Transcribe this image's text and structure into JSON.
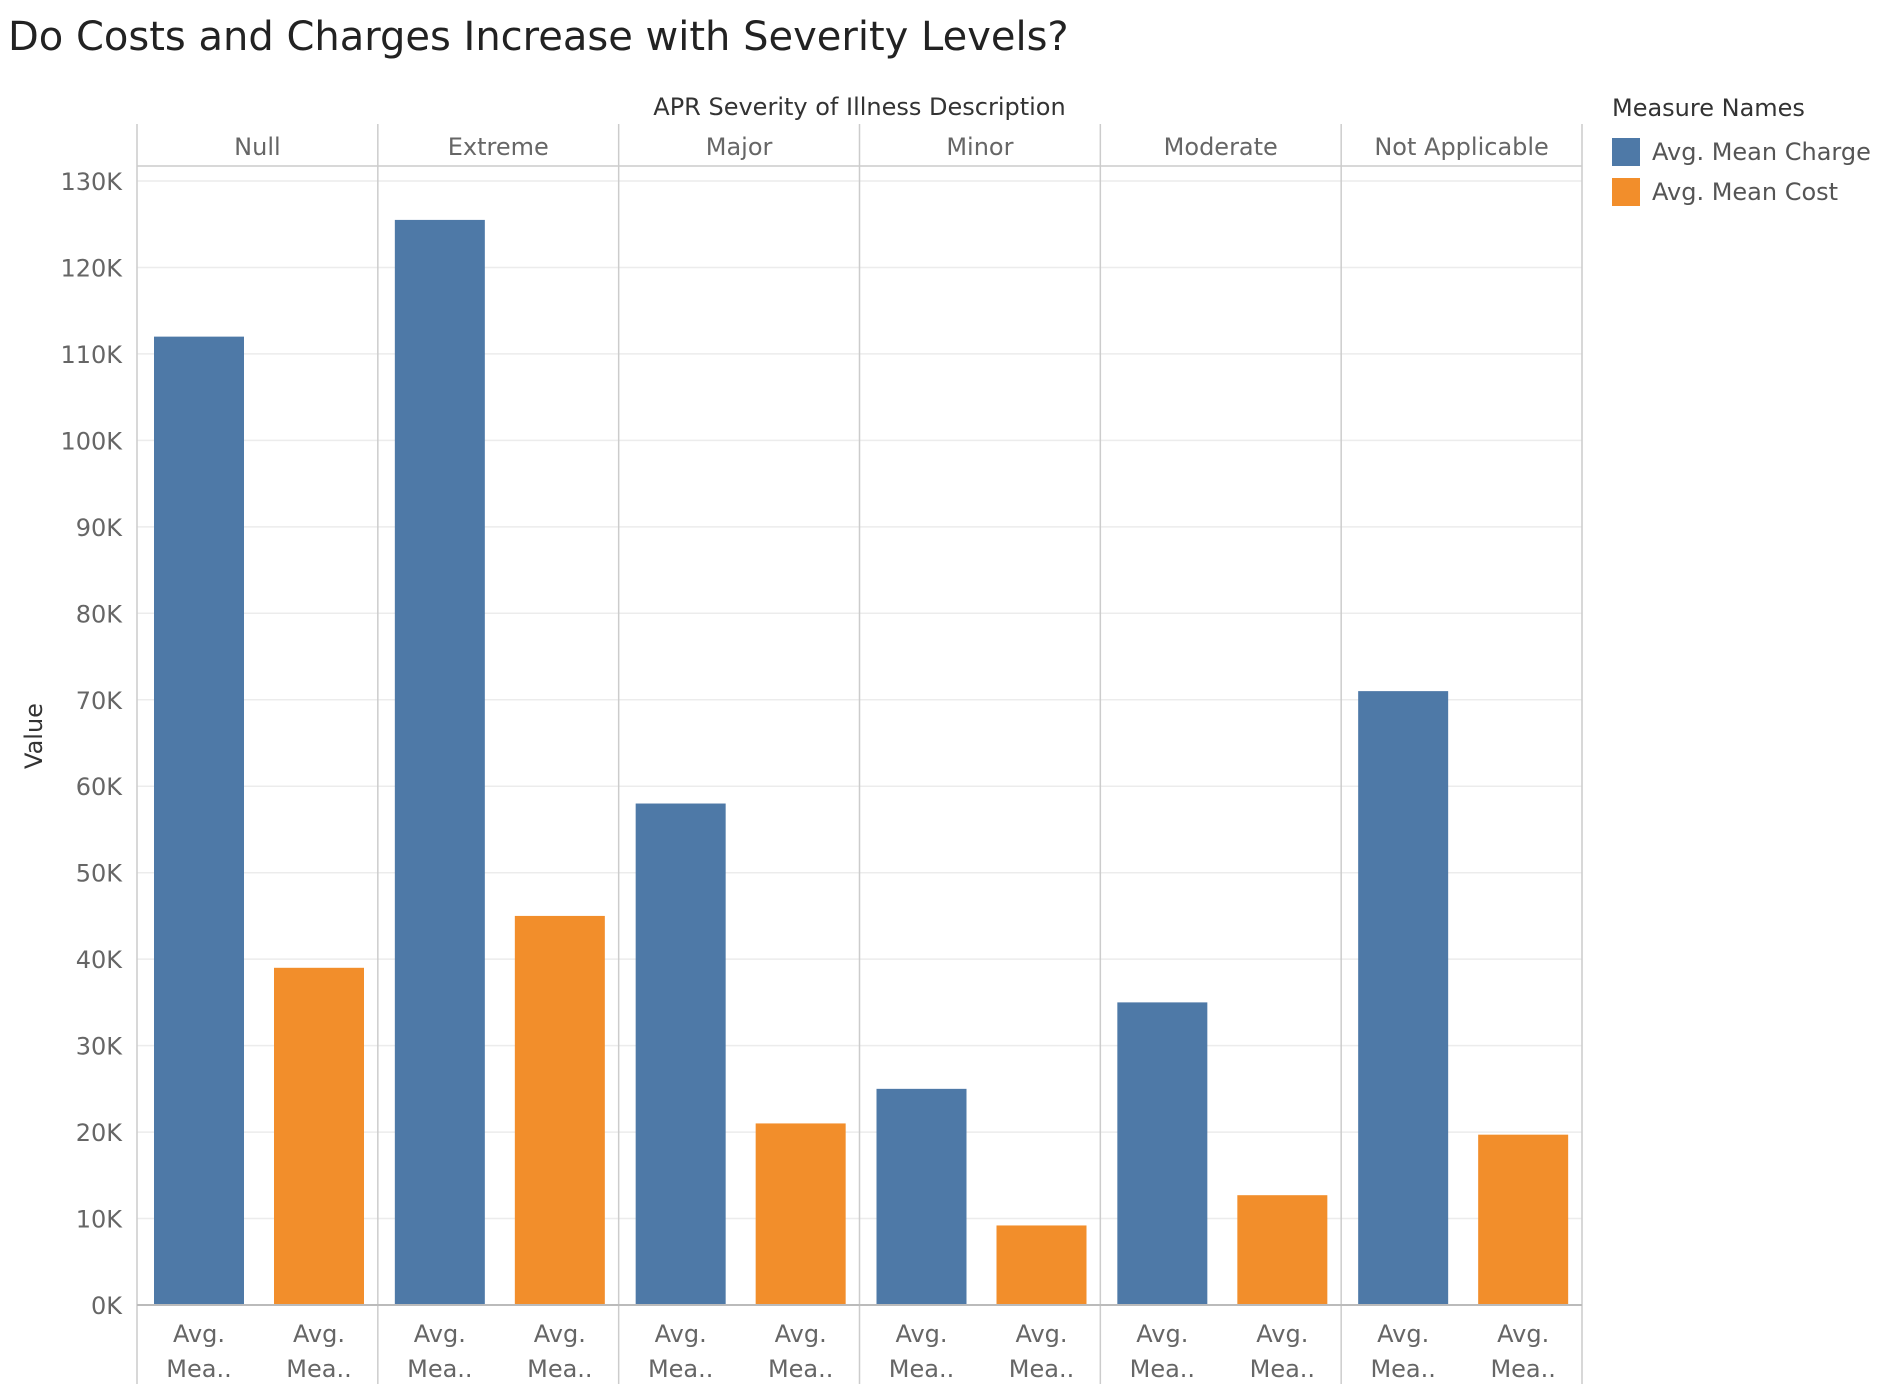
{
  "chart_data": {
    "type": "bar",
    "title": "Do Costs and Charges Increase with Severity Levels?",
    "column_header": "APR Severity of Illness Description",
    "ylabel": "Value",
    "ylim": [
      0,
      130000
    ],
    "yticks": [
      0,
      10000,
      20000,
      30000,
      40000,
      50000,
      60000,
      70000,
      80000,
      90000,
      100000,
      110000,
      120000,
      130000
    ],
    "ytick_labels": [
      "0K",
      "10K",
      "20K",
      "30K",
      "40K",
      "50K",
      "60K",
      "70K",
      "80K",
      "90K",
      "100K",
      "110K",
      "120K",
      "130K"
    ],
    "grid": true,
    "legend_title": "Measure Names",
    "legend_position": "right",
    "categories": [
      "Null",
      "Extreme",
      "Major",
      "Minor",
      "Moderate",
      "Not Applicable"
    ],
    "x_tick_label_line1": "Avg.",
    "x_tick_label_line2": "Mea..",
    "series": [
      {
        "name": "Avg. Mean Charge",
        "color": "#4e79a7",
        "values": [
          112000,
          125500,
          58000,
          25000,
          35000,
          71000
        ]
      },
      {
        "name": "Avg. Mean Cost",
        "color": "#f28e2b",
        "values": [
          39000,
          45000,
          21000,
          9200,
          12700,
          19700
        ]
      }
    ]
  }
}
